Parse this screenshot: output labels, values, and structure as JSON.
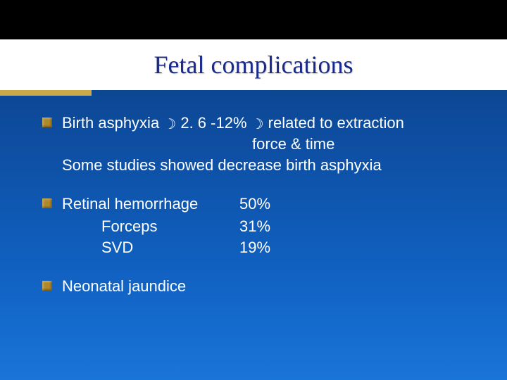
{
  "slide": {
    "title": "Fetal complications",
    "background_gradient_top": "#0a3a7a",
    "background_gradient_bottom": "#1a75d8",
    "header_bg": "#ffffff",
    "title_color": "#1a2a8a",
    "bullet_color": "#b08a2a",
    "gold_bar_color": "#c9a94a",
    "text_color": "#ffffff",
    "font_body": "Arial",
    "font_title": "Times New Roman",
    "title_fontsize_pt": 27,
    "body_fontsize_pt": 16
  },
  "moon_glyph": "☽",
  "item1": {
    "line1_pre": "Birth asphyxia ",
    "line1_stat": " 2. 6 -12% ",
    "line1_post": " related to extraction",
    "line2": "force & time",
    "line3": "Some studies showed decrease birth asphyxia"
  },
  "item2": {
    "header_label": "Retinal hemorrhage",
    "header_value": "50%",
    "rows": [
      {
        "label": "Forceps",
        "value": "31%"
      },
      {
        "label": "SVD",
        "value": "19%"
      }
    ]
  },
  "item3": {
    "label": "Neonatal jaundice"
  }
}
